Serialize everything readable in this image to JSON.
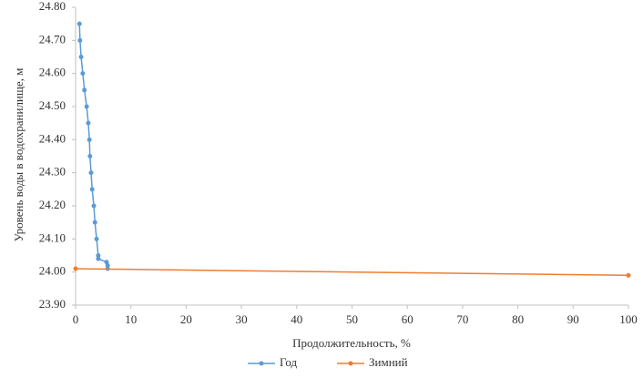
{
  "chart_data": {
    "type": "line",
    "ylabel": "Уровень воды в водохранилище, м",
    "xlabel": "Продолжительность, %",
    "xlim": [
      0,
      100
    ],
    "xticks": [
      0,
      10,
      20,
      30,
      40,
      50,
      60,
      70,
      80,
      90,
      100
    ],
    "ylim": [
      23.9,
      24.8
    ],
    "yticks": [
      {
        "value": 23.9,
        "label": "23.90"
      },
      {
        "value": 24.0,
        "label": "24.00"
      },
      {
        "value": 24.1,
        "label": "24.10"
      },
      {
        "value": 24.2,
        "label": "24.20"
      },
      {
        "value": 24.3,
        "label": "24.30"
      },
      {
        "value": 24.4,
        "label": "24.40"
      },
      {
        "value": 24.5,
        "label": "24.50"
      },
      {
        "value": 24.6,
        "label": "24.60"
      },
      {
        "value": 24.7,
        "label": "24.70"
      },
      {
        "value": 24.8,
        "label": "24.80"
      }
    ],
    "grid": false,
    "legend": "bottom",
    "series": [
      {
        "name": "Год",
        "color": "#5b9bd5",
        "x": [
          0.7,
          0.8,
          1.0,
          1.3,
          1.6,
          2.0,
          2.3,
          2.5,
          2.6,
          2.8,
          3.0,
          3.3,
          3.5,
          3.8,
          4.1,
          4.1,
          5.6,
          5.8,
          5.8
        ],
        "values": [
          24.75,
          24.7,
          24.65,
          24.6,
          24.55,
          24.5,
          24.45,
          24.4,
          24.35,
          24.3,
          24.25,
          24.2,
          24.15,
          24.1,
          24.05,
          24.04,
          24.03,
          24.02,
          24.01
        ]
      },
      {
        "name": "Зимний",
        "color": "#ed7d31",
        "x": [
          0,
          100
        ],
        "values": [
          24.01,
          23.99
        ]
      }
    ]
  }
}
